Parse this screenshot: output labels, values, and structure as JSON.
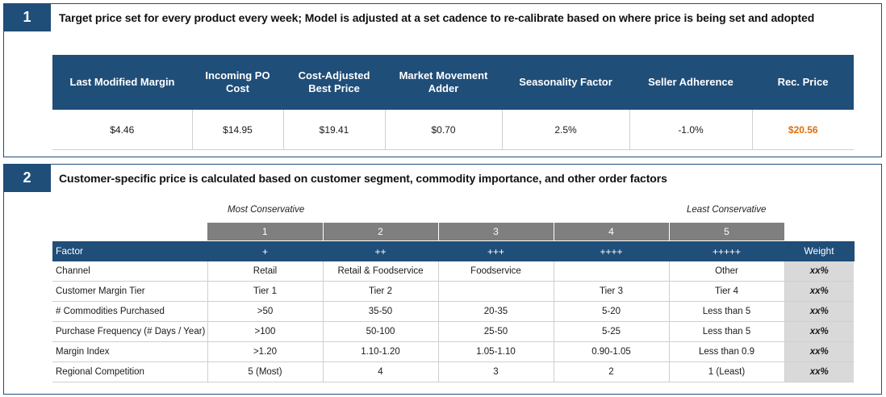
{
  "panel1": {
    "number": "1",
    "title": "Target price set for every product every week; Model is adjusted at a set cadence to re-calibrate based on where price is being set and adopted",
    "headers": [
      "Last Modified Margin",
      "Incoming PO Cost",
      "Cost-Adjusted Best Price",
      "Market Movement Adder",
      "Seasonality Factor",
      "Seller Adherence",
      "Rec. Price"
    ],
    "values": [
      "$4.46",
      "$14.95",
      "$19.41",
      "$0.70",
      "2.5%",
      "-1.0%",
      "$20.56"
    ],
    "rec_price_color": "#e36c09"
  },
  "panel2": {
    "number": "2",
    "title": "Customer-specific price is calculated based on customer segment, commodity importance, and other order factors",
    "most_conservative": "Most Conservative",
    "least_conservative": "Least Conservative",
    "levels": [
      "1",
      "2",
      "3",
      "4",
      "5"
    ],
    "header": [
      "Factor",
      "+",
      "++",
      "+++",
      "++++",
      "+++++",
      "Weight"
    ],
    "rows": [
      [
        "Channel",
        "Retail",
        "Retail & Foodservice",
        "Foodservice",
        "",
        "Other",
        "xx%"
      ],
      [
        "Customer Margin Tier",
        "Tier 1",
        "Tier 2",
        "",
        "Tier 3",
        "Tier 4",
        "xx%"
      ],
      [
        "# Commodities Purchased",
        ">50",
        "35-50",
        "20-35",
        "5-20",
        "Less than 5",
        "xx%"
      ],
      [
        "Purchase Frequency (# Days / Year)",
        ">100",
        "50-100",
        "25-50",
        "5-25",
        "Less than 5",
        "xx%"
      ],
      [
        "Margin Index",
        ">1.20",
        "1.10-1.20",
        "1.05-1.10",
        "0.90-1.05",
        "Less than 0.9",
        "xx%"
      ],
      [
        "Regional Competition",
        "5 (Most)",
        "4",
        "3",
        "2",
        "1 (Least)",
        "xx%"
      ]
    ]
  },
  "colors": {
    "navy": "#1f4e79",
    "level_gray": "#7f7f7f",
    "weight_gray": "#d9d9d9"
  }
}
